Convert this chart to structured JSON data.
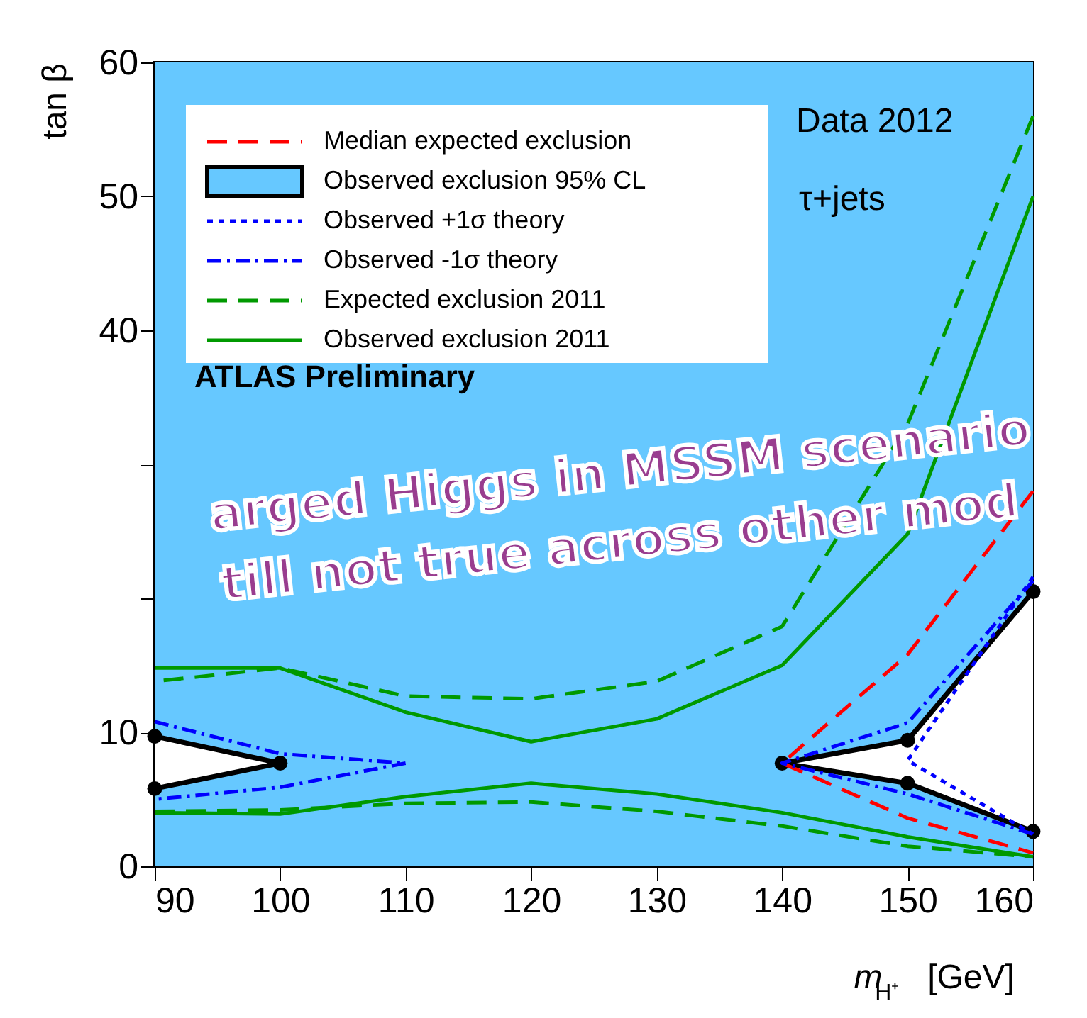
{
  "chart_data": {
    "type": "line",
    "xlabel": "m$_{H⁺}$ [GeV]",
    "ylabel": "tan β",
    "xlim": [
      90,
      160
    ],
    "xticks": [
      90,
      100,
      110,
      120,
      130,
      140,
      150,
      160
    ],
    "ylim": [
      0,
      60
    ],
    "yticks": [
      0,
      10,
      {
        "value": 20,
        "label": null
      },
      {
        "value": 30,
        "label": null
      },
      40,
      50,
      60
    ],
    "grid": false,
    "legend": "top left",
    "bands": [
      {
        "axis": "y",
        "from": 0,
        "to": 60,
        "color": "#66c8ff"
      }
    ],
    "annotations": [
      "Data 2012",
      "τ+jets",
      "ATLAS Preliminary",
      "arged Higgs in MSSM scenario",
      "till not true across other mod"
    ],
    "series": [
      {
        "name": "Median expected exclusion",
        "color": "#ff0000",
        "line_style": "dashed",
        "x": [
          160,
          150,
          140,
          150,
          160
        ],
        "values": [
          28,
          15.8,
          7.7,
          3.6,
          1.0
        ]
      },
      {
        "name": "Observed exclusion 95% CL",
        "type": "area",
        "color": "#000000",
        "marker": "circle",
        "x": [
          160,
          150,
          140,
          150,
          160
        ],
        "values": [
          20.5,
          9.4,
          7.7,
          6.2,
          2.6
        ]
      },
      {
        "type": "area",
        "color": "#000000",
        "marker": "circle",
        "x": [
          90,
          100,
          90
        ],
        "values": [
          9.7,
          7.7,
          5.8
        ]
      },
      {
        "name": "Observed +1σ theory",
        "color": "#0000ff",
        "line_style": "dotted",
        "x": [
          160,
          150,
          160
        ],
        "values": [
          21.6,
          7.9,
          2.4
        ]
      },
      {
        "name": "Observed -1σ theory",
        "color": "#0000ff",
        "line_style": "dashdot",
        "x": [
          160,
          150,
          140,
          150,
          160
        ],
        "values": [
          21.3,
          10.7,
          7.7,
          5.4,
          2.4
        ]
      },
      {
        "color": "#0000ff",
        "line_style": "dashdot",
        "x": [
          90,
          100,
          110,
          100,
          90
        ],
        "values": [
          10.8,
          8.4,
          7.7,
          5.9,
          5.0
        ]
      },
      {
        "name": "Expected exclusion 2011",
        "color": "#009900",
        "line_style": "dashed",
        "x": [
          160,
          150,
          140,
          130,
          120,
          110,
          100,
          90
        ],
        "values": [
          56,
          33,
          17.9,
          13.8,
          12.5,
          12.7,
          14.8,
          13.8
        ]
      },
      {
        "color": "#009900",
        "line_style": "dashed",
        "x": [
          90,
          100,
          110,
          120,
          130,
          140,
          150,
          160
        ],
        "values": [
          4.1,
          4.2,
          4.7,
          4.8,
          4.1,
          3.0,
          1.5,
          0.7
        ]
      },
      {
        "name": "Observed exclusion 2011",
        "color": "#009900",
        "line_style": "solid",
        "x": [
          160,
          150,
          140,
          130,
          120,
          110,
          100,
          90
        ],
        "values": [
          50,
          24.8,
          15.0,
          11.0,
          9.3,
          11.5,
          14.8,
          14.8
        ]
      },
      {
        "color": "#009900",
        "line_style": "solid",
        "x": [
          90,
          100,
          110,
          120,
          130,
          140,
          150,
          160
        ],
        "values": [
          4.0,
          3.9,
          5.2,
          6.2,
          5.4,
          4.0,
          2.2,
          0.7
        ]
      }
    ]
  }
}
